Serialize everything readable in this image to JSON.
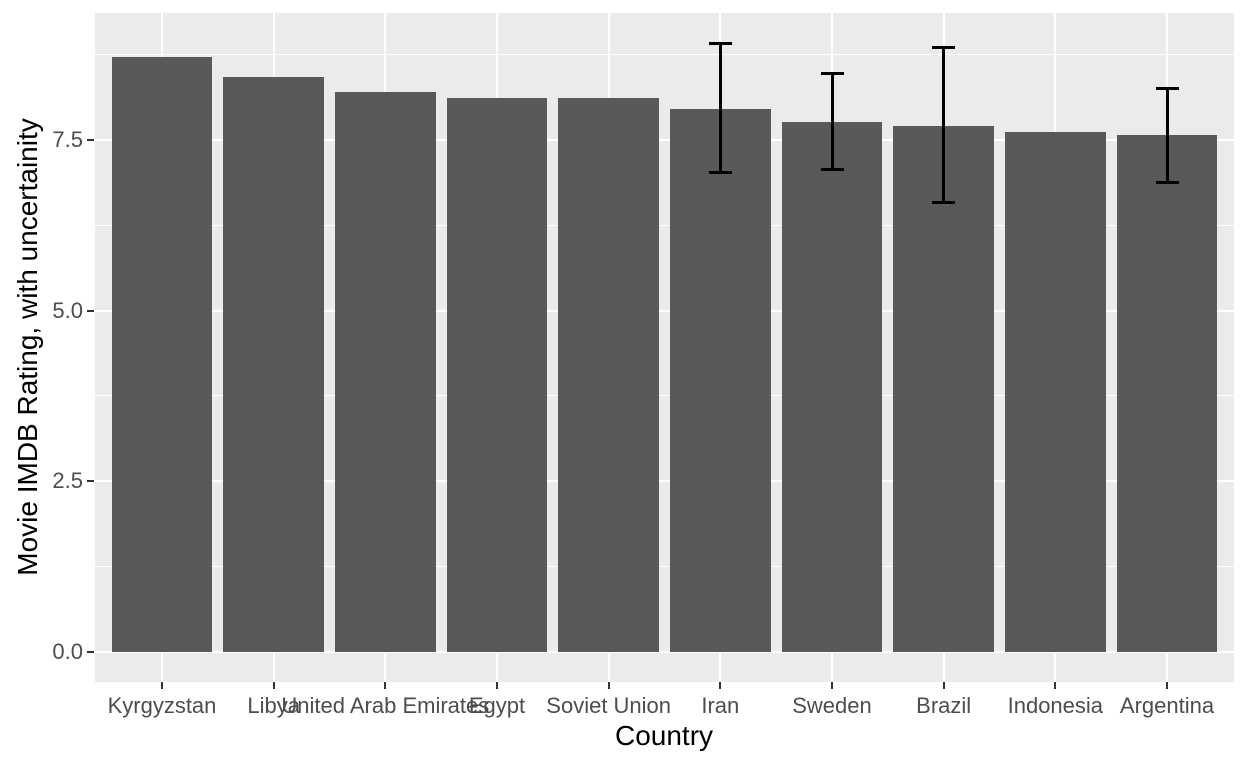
{
  "figure": {
    "background": "#FFFFFF",
    "panel_background": "#EBEBEB",
    "grid_color": "#FFFFFF",
    "bar_color": "#595959",
    "errorbar_color": "#000000",
    "axis_tick_color": "#333333",
    "tick_label_color": "#4D4D4D",
    "axis_title_color": "#000000"
  },
  "chart_data": {
    "type": "bar",
    "title": "",
    "xlabel": "Country",
    "ylabel": "Movie IMDB Rating, with uncertainity",
    "categories": [
      "Kyrgyzstan",
      "Libya",
      "United Arab Emirates",
      "Egypt",
      "Soviet Union",
      "Iran",
      "Sweden",
      "Brazil",
      "Indonesia",
      "Argentina"
    ],
    "values": [
      8.72,
      8.42,
      8.21,
      8.11,
      8.11,
      7.96,
      7.76,
      7.71,
      7.61,
      7.57
    ],
    "error_low": [
      null,
      null,
      null,
      null,
      null,
      7.03,
      7.07,
      6.59,
      null,
      6.88
    ],
    "error_high": [
      null,
      null,
      null,
      null,
      null,
      8.91,
      8.48,
      8.86,
      null,
      8.26
    ],
    "y_ticks": [
      0.0,
      2.5,
      5.0,
      7.5
    ],
    "y_tick_labels": [
      "0.0",
      "2.5",
      "5.0",
      "7.5"
    ],
    "y_minor_ticks": [
      1.25,
      3.75,
      6.25,
      8.75
    ],
    "ylim": [
      -0.44,
      9.36
    ],
    "grid": true,
    "legend": false,
    "bar_width_ratio": 0.9,
    "outer_expand": 0.6,
    "errorbar_cap_width": 23
  }
}
